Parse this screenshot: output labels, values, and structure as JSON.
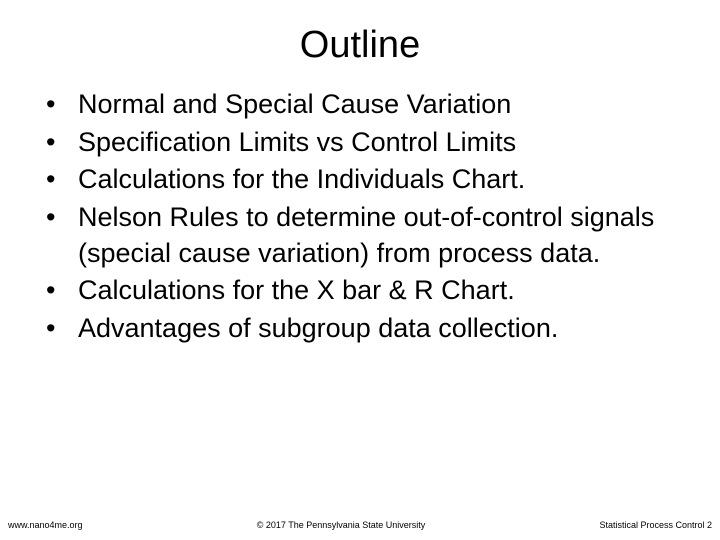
{
  "slide": {
    "title": "Outline",
    "bullets": [
      "Normal and Special Cause Variation",
      "Specification Limits vs Control Limits",
      "Calculations for the Individuals Chart.",
      "Nelson Rules to determine out-of-control signals (special cause variation) from process data.",
      "Calculations for the X bar & R Chart.",
      "Advantages of subgroup data collection."
    ]
  },
  "footer": {
    "left": "www.nano4me.org",
    "center": "© 2017 The Pennsylvania State University",
    "right": "Statistical Process Control 2"
  },
  "style": {
    "background_color": "#ffffff",
    "text_color": "#000000",
    "title_fontsize": 38,
    "body_fontsize": 27,
    "footer_fontsize": 9
  }
}
